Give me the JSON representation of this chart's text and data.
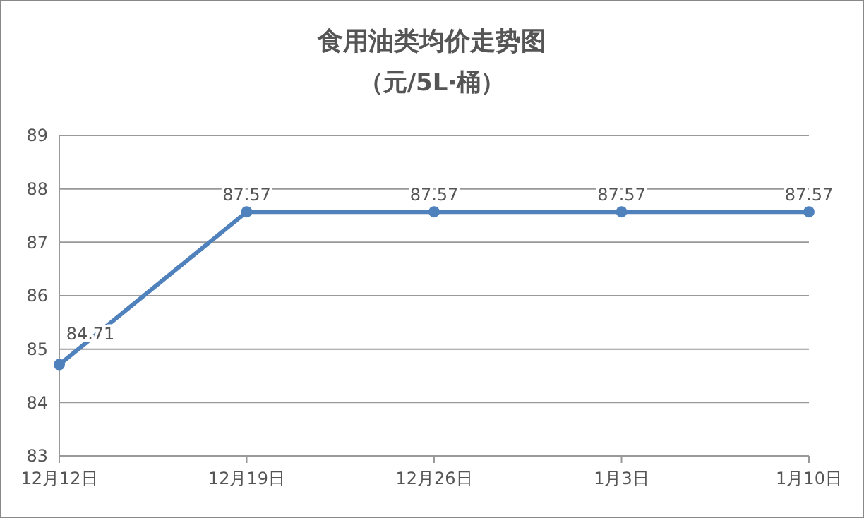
{
  "chart_data": {
    "type": "line",
    "title": "食用油类均价走势图",
    "subtitle": "（元/5L·桶）",
    "categories": [
      "12月12日",
      "12月19日",
      "12月26日",
      "1月3日",
      "1月10日"
    ],
    "values": [
      84.71,
      87.57,
      87.57,
      87.57,
      87.57
    ],
    "color": "#4f81bd",
    "ylim": [
      83,
      89
    ],
    "yticks": [
      83,
      84,
      85,
      86,
      87,
      88,
      89
    ],
    "grid": "y",
    "marker": "circle",
    "line_style": "solid",
    "data_labels": true
  }
}
